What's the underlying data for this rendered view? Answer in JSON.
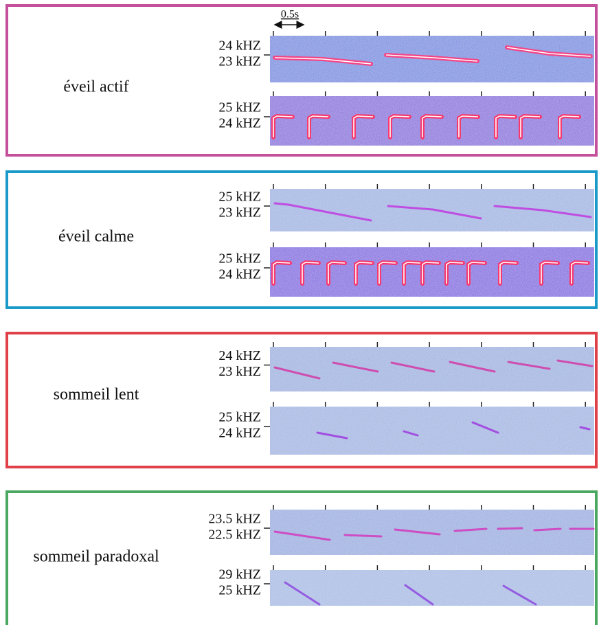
{
  "scale_bar": "0.5s",
  "panels": [
    {
      "label": "éveil actif",
      "plots": [
        {
          "tick_labels": [
            "24 kHZ",
            "23 kHZ"
          ]
        },
        {
          "tick_labels": [
            "25 kHZ",
            "24 kHZ"
          ]
        }
      ]
    },
    {
      "label": "éveil calme",
      "plots": [
        {
          "tick_labels": [
            "25 kHZ",
            "23 kHZ"
          ]
        },
        {
          "tick_labels": [
            "25 kHZ",
            "24 kHZ"
          ]
        }
      ]
    },
    {
      "label": "sommeil lent",
      "plots": [
        {
          "tick_labels": [
            "24 kHZ",
            "23 kHZ"
          ]
        },
        {
          "tick_labels": [
            "25 kHZ",
            "24 kHZ"
          ]
        }
      ]
    },
    {
      "label": "sommeil paradoxal",
      "plots": [
        {
          "tick_labels": [
            "23.5 kHZ",
            "22.5 kHZ"
          ]
        },
        {
          "tick_labels": [
            "29 kHZ",
            "25 kHZ"
          ]
        }
      ]
    }
  ]
}
